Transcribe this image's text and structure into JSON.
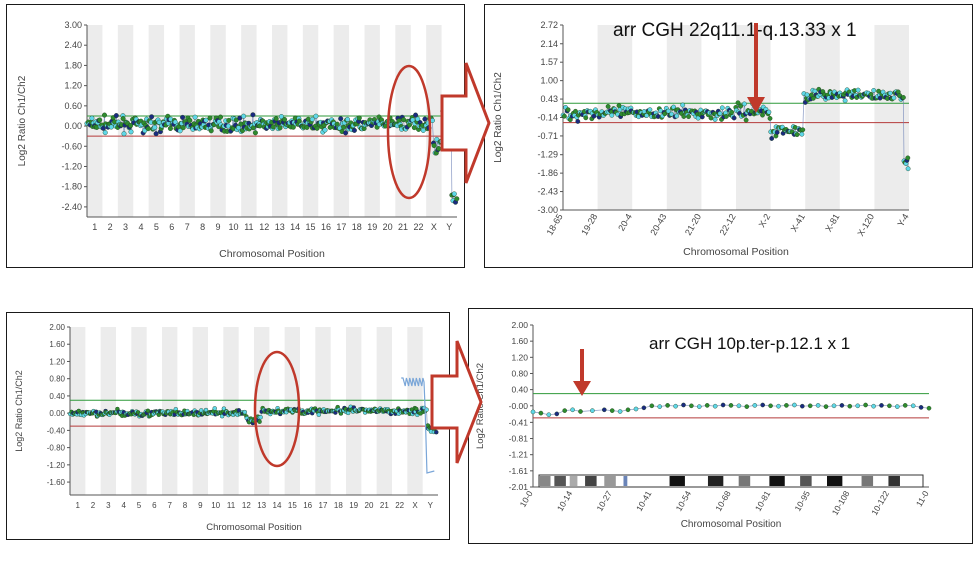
{
  "panels": [
    {
      "id": "p1",
      "title": "",
      "xlabel": "Chromosomal Position",
      "ylabel": "Log2 Ratio Ch1/Ch2"
    },
    {
      "id": "p2",
      "title": "arr CGH 22q11.1-q.13.33 x 1",
      "xlabel": "Chromosomal Position",
      "ylabel": "Log2 Ratio Ch1/Ch2"
    },
    {
      "id": "p3",
      "title": "",
      "xlabel": "Chromosomal Position",
      "ylabel": "Log2 Ratio Ch1/Ch2"
    },
    {
      "id": "p4",
      "title": "arr CGH 10p.ter-p.12.1 x 1",
      "xlabel": "Chromosomal Position",
      "ylabel": "Log2 Ratio Ch1/Ch2"
    }
  ],
  "colors": {
    "threshold_high": "#2f9a3a",
    "threshold_low": "#b53a3a",
    "point_cyan": "#5fd7e8",
    "point_green": "#2e8b2e",
    "point_navy": "#1a2a80",
    "band_gray": "#ececec",
    "arrow_red": "#c0392b",
    "callout_red": "#c0392b"
  },
  "chart_data": [
    {
      "type": "scatter",
      "title": "",
      "xlabel": "Chromosomal Position",
      "ylabel": "Log2 Ratio Ch1/Ch2",
      "ylim": [
        -2.7,
        3.0
      ],
      "yticks": [
        "3.00",
        "2.40",
        "1.80",
        "1.20",
        "0.60",
        "0.00",
        "-0.60",
        "-1.20",
        "-1.80",
        "-2.40"
      ],
      "ytick_values": [
        3.0,
        2.4,
        1.8,
        1.2,
        0.6,
        0.0,
        -0.6,
        -1.2,
        -1.8,
        -2.4
      ],
      "categories": [
        "1",
        "2",
        "3",
        "4",
        "5",
        "6",
        "7",
        "8",
        "9",
        "10",
        "11",
        "12",
        "13",
        "14",
        "15",
        "16",
        "17",
        "18",
        "19",
        "20",
        "21",
        "22",
        "X",
        "Y"
      ],
      "thresholds": [
        0.3,
        -0.3
      ],
      "segments": [
        {
          "from": 0.0,
          "to": 0.84,
          "mean": 0.05,
          "spread": 0.35
        },
        {
          "from": 0.84,
          "to": 0.935,
          "mean": 0.05,
          "spread": 0.45
        },
        {
          "from": 0.935,
          "to": 0.96,
          "mean": -0.55,
          "spread": 0.35
        },
        {
          "from": 0.96,
          "to": 0.985,
          "mean": 0.55,
          "spread": 0.25
        },
        {
          "from": 0.985,
          "to": 1.0,
          "mean": -2.2,
          "spread": 0.35
        }
      ],
      "annotation": "ellipse over chromosomes 19-22",
      "grid": false
    },
    {
      "type": "scatter",
      "title": "arr CGH 22q11.1-q.13.33 x 1",
      "xlabel": "Chromosomal Position",
      "ylabel": "Log2 Ratio Ch1/Ch2",
      "ylim": [
        -3.0,
        2.72
      ],
      "yticks": [
        "2.72",
        "2.14",
        "1.57",
        "1.00",
        "0.43",
        "-0.14",
        "-0.71",
        "-1.29",
        "-1.86",
        "-2.43",
        "-3.00"
      ],
      "ytick_values": [
        2.72,
        2.14,
        1.57,
        1.0,
        0.43,
        -0.14,
        -0.71,
        -1.29,
        -1.86,
        -2.43,
        -3.0
      ],
      "categories": [
        "18-65",
        "19-28",
        "20-4",
        "20-43",
        "21-20",
        "22-12",
        "X-2",
        "X-41",
        "X-81",
        "X-120",
        "Y-4"
      ],
      "thresholds": [
        0.3,
        -0.3
      ],
      "segments": [
        {
          "from": 0.0,
          "to": 0.5,
          "mean": 0.0,
          "spread": 0.35
        },
        {
          "from": 0.5,
          "to": 0.6,
          "mean": 0.05,
          "spread": 0.35
        },
        {
          "from": 0.6,
          "to": 0.695,
          "mean": -0.55,
          "spread": 0.35
        },
        {
          "from": 0.695,
          "to": 0.985,
          "mean": 0.55,
          "spread": 0.28
        },
        {
          "from": 0.985,
          "to": 1.0,
          "mean": -1.5,
          "spread": 0.55
        }
      ],
      "annotation": "arrow pointing down at chromosome 22 loss",
      "grid": false
    },
    {
      "type": "scatter",
      "title": "",
      "xlabel": "Chromosomal Position",
      "ylabel": "Log2 Ratio Ch1/Ch2",
      "ylim": [
        -1.9,
        2.0
      ],
      "yticks": [
        "2.00",
        "1.60",
        "1.20",
        "0.80",
        "0.40",
        "0.00",
        "-0.40",
        "-0.80",
        "-1.20",
        "-1.60"
      ],
      "ytick_values": [
        2.0,
        1.6,
        1.2,
        0.8,
        0.4,
        0.0,
        -0.4,
        -0.8,
        -1.2,
        -1.6
      ],
      "categories": [
        "1",
        "2",
        "3",
        "4",
        "5",
        "6",
        "7",
        "8",
        "9",
        "10",
        "11",
        "12",
        "13",
        "14",
        "15",
        "16",
        "17",
        "18",
        "19",
        "20",
        "21",
        "22",
        "X",
        "Y"
      ],
      "thresholds": [
        0.3,
        -0.3
      ],
      "segments": [
        {
          "from": 0.0,
          "to": 0.48,
          "mean": 0.0,
          "spread": 0.12
        },
        {
          "from": 0.48,
          "to": 0.52,
          "mean": -0.15,
          "spread": 0.15
        },
        {
          "from": 0.52,
          "to": 0.97,
          "mean": 0.05,
          "spread": 0.12
        },
        {
          "from": 0.97,
          "to": 1.0,
          "mean": -0.35,
          "spread": 0.15
        }
      ],
      "annotation": "ellipse over chromosomes 9-10",
      "grid": false
    },
    {
      "type": "line",
      "title": "arr CGH 10p.ter-p.12.1 x 1",
      "xlabel": "Chromosomal Position",
      "ylabel": "Log2 Ratio Ch1/Ch2",
      "ylim": [
        -2.01,
        2.0
      ],
      "yticks": [
        "2.00",
        "1.60",
        "1.20",
        "0.80",
        "0.40",
        "-0.00",
        "-0.41",
        "-0.81",
        "-1.21",
        "-1.61",
        "-2.01"
      ],
      "ytick_values": [
        2.0,
        1.6,
        1.2,
        0.8,
        0.4,
        0.0,
        -0.41,
        -0.81,
        -1.21,
        -1.61,
        -2.01
      ],
      "categories": [
        "10-0",
        "10-14",
        "10-27",
        "10-41",
        "10-54",
        "10-68",
        "10-81",
        "10-95",
        "10-108",
        "10-122",
        "11-0"
      ],
      "thresholds": [
        0.3,
        -0.3
      ],
      "x": [
        0.0,
        0.02,
        0.04,
        0.06,
        0.08,
        0.1,
        0.12,
        0.15,
        0.18,
        0.2,
        0.22,
        0.24,
        0.26,
        0.28,
        0.3,
        0.32,
        0.34,
        0.36,
        0.38,
        0.4,
        0.42,
        0.44,
        0.46,
        0.48,
        0.5,
        0.52,
        0.54,
        0.56,
        0.58,
        0.6,
        0.62,
        0.64,
        0.66,
        0.68,
        0.7,
        0.72,
        0.74,
        0.76,
        0.78,
        0.8,
        0.82,
        0.84,
        0.86,
        0.88,
        0.9,
        0.92,
        0.94,
        0.96,
        0.98,
        1.0
      ],
      "values": [
        -0.15,
        -0.18,
        -0.22,
        -0.2,
        -0.12,
        -0.1,
        -0.14,
        -0.12,
        -0.1,
        -0.12,
        -0.14,
        -0.1,
        -0.08,
        -0.05,
        0.0,
        -0.02,
        0.01,
        -0.01,
        0.02,
        0.0,
        -0.02,
        0.01,
        -0.01,
        0.02,
        0.01,
        0.0,
        -0.02,
        0.01,
        0.02,
        0.0,
        -0.01,
        0.01,
        0.02,
        -0.01,
        0.0,
        0.01,
        -0.02,
        0.0,
        0.01,
        -0.01,
        0.0,
        0.02,
        -0.01,
        0.01,
        0.0,
        -0.02,
        0.01,
        0.0,
        -0.04,
        -0.06
      ],
      "annotation": "arrow pointing down at 10p terminal loss",
      "ideogram": true,
      "grid": false
    }
  ]
}
